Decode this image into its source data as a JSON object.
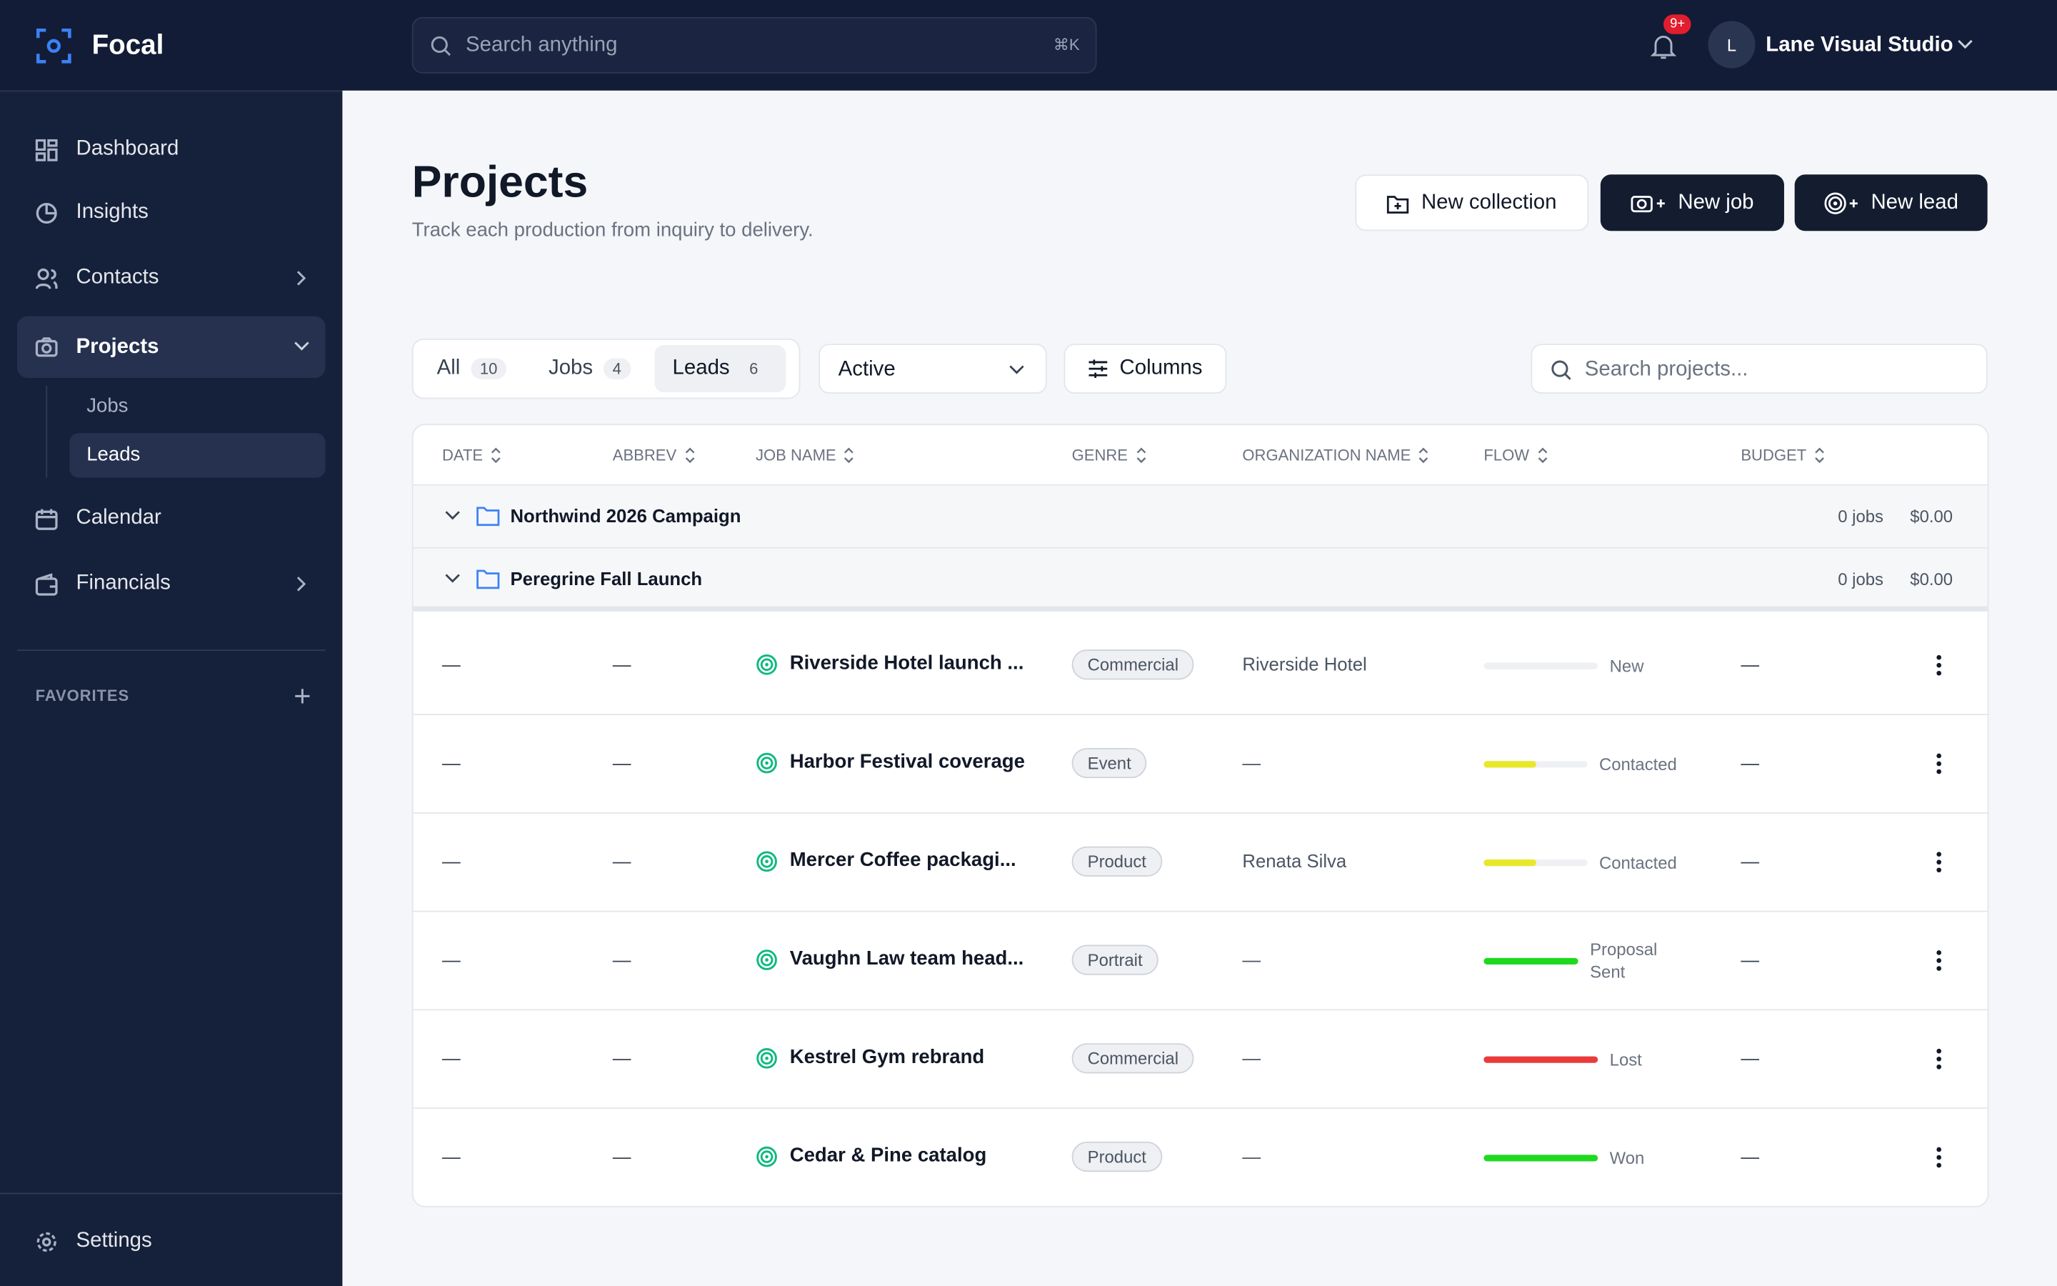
{
  "app": {
    "name": "Focal"
  },
  "topbar": {
    "search_placeholder": "Search anything",
    "search_shortcut": "⌘K",
    "notification_badge": "9+",
    "user_initial": "L",
    "user_name": "Lane Visual Studio"
  },
  "sidebar": {
    "nav": [
      "Dashboard",
      "Insights",
      "Contacts",
      "Projects",
      "Calendar",
      "Financials"
    ],
    "projects_sub": [
      "Jobs",
      "Leads"
    ],
    "favorites_label": "FAVORITES",
    "settings": "Settings"
  },
  "header": {
    "title": "Projects",
    "subtitle": "Track each production from inquiry to delivery.",
    "buttons": [
      "New collection",
      "New job",
      "New lead"
    ]
  },
  "filters": {
    "tabs": [
      {
        "label": "All",
        "count": 10
      },
      {
        "label": "Jobs",
        "count": 4
      },
      {
        "label": "Leads",
        "count": 6
      }
    ],
    "status": "Active",
    "columns": "Columns",
    "search_placeholder": "Search projects..."
  },
  "table": {
    "columns": [
      "DATE",
      "ABBREV",
      "JOB NAME",
      "GENRE",
      "ORGANIZATION NAME",
      "FLOW",
      "BUDGET"
    ],
    "groups": [
      {
        "name": "Northwind 2026 Campaign",
        "jobs": "0 jobs",
        "budget": "$0.00"
      },
      {
        "name": "Peregrine Fall Launch",
        "jobs": "0 jobs",
        "budget": "$0.00"
      }
    ],
    "rows": [
      {
        "date": "—",
        "abbrev": "—",
        "job_name": "Riverside Hotel launch ...",
        "genre": "Commercial",
        "organization": "Riverside Hotel",
        "flow": "New",
        "flow_progress": 0,
        "flow_color": "#e5e7eb",
        "budget": "—"
      },
      {
        "date": "—",
        "abbrev": "—",
        "job_name": "Harbor Festival coverage",
        "genre": "Event",
        "organization": "—",
        "flow": "Contacted",
        "flow_progress": 50,
        "flow_color": "#e8e82a",
        "budget": "—"
      },
      {
        "date": "—",
        "abbrev": "—",
        "job_name": "Mercer Coffee packagi...",
        "genre": "Product",
        "organization": "Renata Silva",
        "flow": "Contacted",
        "flow_progress": 50,
        "flow_color": "#e8e82a",
        "budget": "—"
      },
      {
        "date": "—",
        "abbrev": "—",
        "job_name": "Vaughn Law team head...",
        "genre": "Portrait",
        "organization": "—",
        "flow": "Proposal Sent",
        "flow_progress": 100,
        "flow_color": "#1fd91f",
        "budget": "—"
      },
      {
        "date": "—",
        "abbrev": "—",
        "job_name": "Kestrel Gym rebrand",
        "genre": "Commercial",
        "organization": "—",
        "flow": "Lost",
        "flow_progress": 100,
        "flow_color": "#ea3b3b",
        "budget": "—"
      },
      {
        "date": "—",
        "abbrev": "—",
        "job_name": "Cedar & Pine catalog",
        "genre": "Product",
        "organization": "—",
        "flow": "Won",
        "flow_progress": 100,
        "flow_color": "#1fd91f",
        "budget": "—"
      }
    ]
  }
}
